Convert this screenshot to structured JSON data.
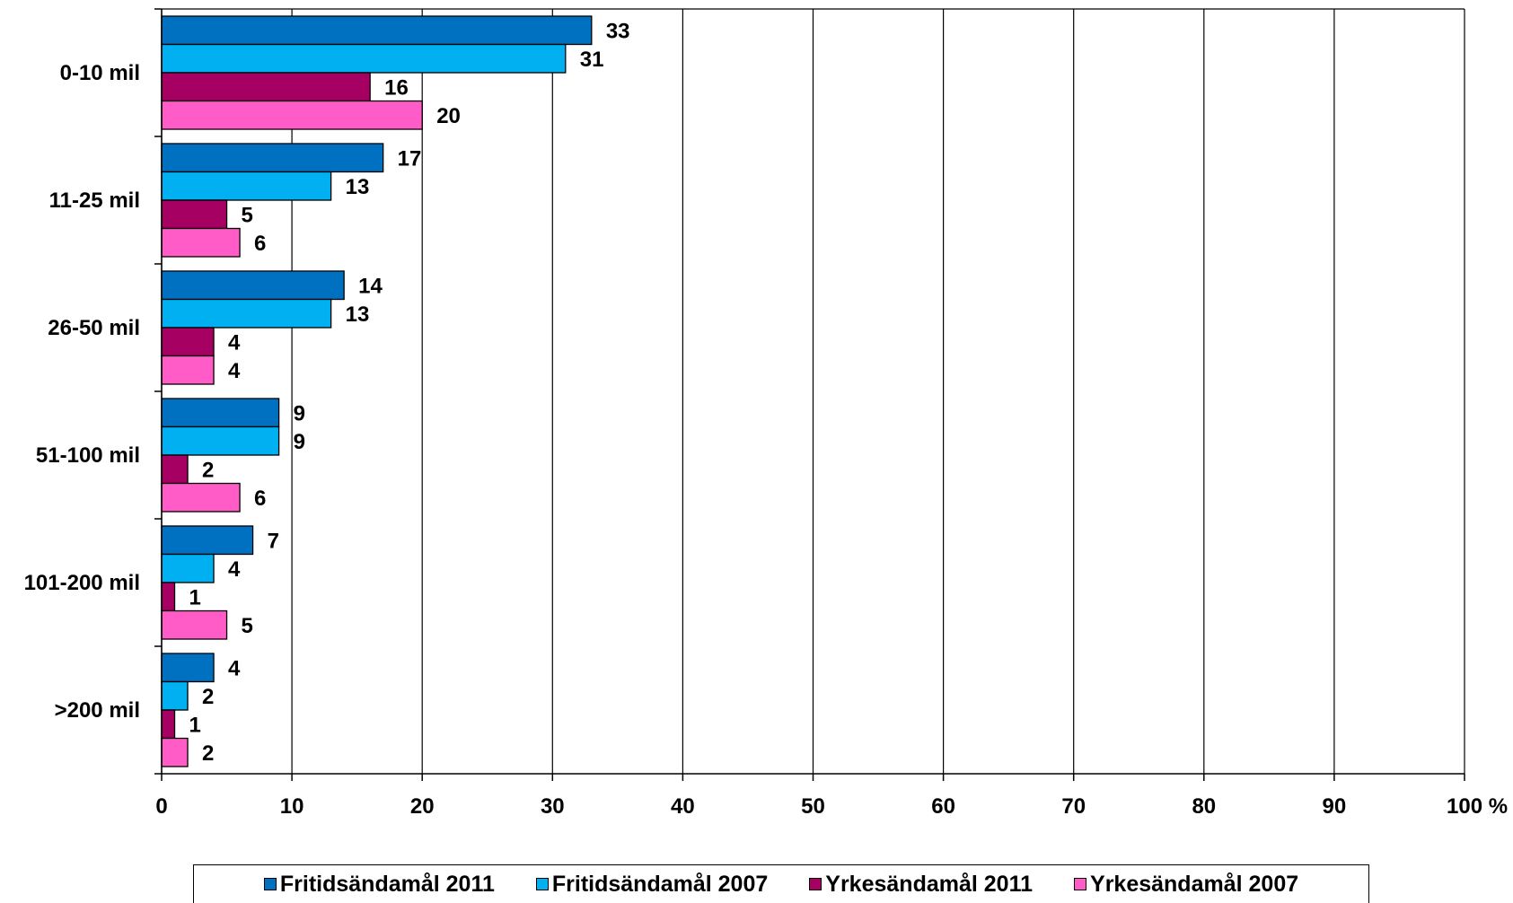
{
  "chart_data": {
    "type": "bar",
    "orientation": "horizontal",
    "categories": [
      "0-10 mil",
      "11-25 mil",
      "26-50 mil",
      "51-100 mil",
      "101-200 mil",
      ">200 mil"
    ],
    "series": [
      {
        "name": "Fritidsändamål 2011",
        "color": "#0070c0",
        "values": [
          33,
          17,
          14,
          9,
          7,
          4
        ]
      },
      {
        "name": "Fritidsändamål 2007",
        "color": "#00b0f0",
        "values": [
          31,
          13,
          13,
          9,
          4,
          2
        ]
      },
      {
        "name": "Yrkesändamål 2011",
        "color": "#a50062",
        "values": [
          16,
          5,
          4,
          2,
          1,
          1
        ]
      },
      {
        "name": "Yrkesändamål 2007",
        "color": "#ff5cc8",
        "values": [
          20,
          6,
          4,
          6,
          5,
          2
        ]
      }
    ],
    "x_ticks": [
      "0",
      "10",
      "20",
      "30",
      "40",
      "50",
      "60",
      "70",
      "80",
      "90",
      "100 %"
    ],
    "xlim": [
      0,
      100
    ],
    "grid": "vertical",
    "legend_position": "bottom",
    "data_labels": true
  }
}
